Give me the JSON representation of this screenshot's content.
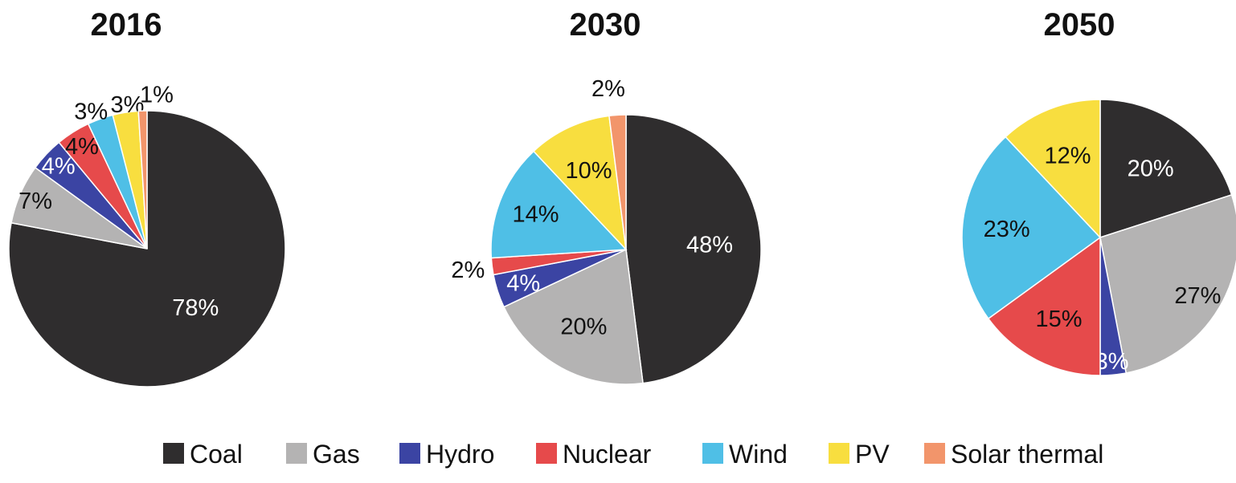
{
  "chart_data": [
    {
      "type": "pie",
      "title": "2016",
      "categories": [
        "Coal",
        "Gas",
        "Hydro",
        "Nuclear",
        "Wind",
        "PV",
        "Solar thermal"
      ],
      "values": [
        78,
        7,
        4,
        4,
        3,
        3,
        1
      ],
      "labels": [
        "78%",
        "7%",
        "4%",
        "4%",
        "3%",
        "3%",
        "1%"
      ]
    },
    {
      "type": "pie",
      "title": "2030",
      "categories": [
        "Coal",
        "Gas",
        "Hydro",
        "Nuclear",
        "Wind",
        "PV",
        "Solar thermal"
      ],
      "values": [
        48,
        20,
        4,
        2,
        14,
        10,
        2
      ],
      "labels": [
        "48%",
        "20%",
        "4%",
        "2%",
        "14%",
        "10%",
        "2%"
      ]
    },
    {
      "type": "pie",
      "title": "2050",
      "categories": [
        "Coal",
        "Gas",
        "Hydro",
        "Nuclear",
        "Wind",
        "PV",
        "Solar thermal"
      ],
      "values": [
        20,
        27,
        3,
        15,
        23,
        12,
        0
      ],
      "labels": [
        "20%",
        "27%",
        "3%",
        "15%",
        "23%",
        "12%",
        ""
      ]
    }
  ],
  "legend": {
    "placement": "bottom",
    "items": [
      {
        "label": "Coal",
        "color": "#2f2d2e"
      },
      {
        "label": "Gas",
        "color": "#b4b3b3"
      },
      {
        "label": "Hydro",
        "color": "#3b44a3"
      },
      {
        "label": "Nuclear",
        "color": "#e64a4b"
      },
      {
        "label": "Wind",
        "color": "#4fbfe6"
      },
      {
        "label": "PV",
        "color": "#f8de3f"
      },
      {
        "label": "Solar thermal",
        "color": "#f2956b"
      }
    ]
  }
}
